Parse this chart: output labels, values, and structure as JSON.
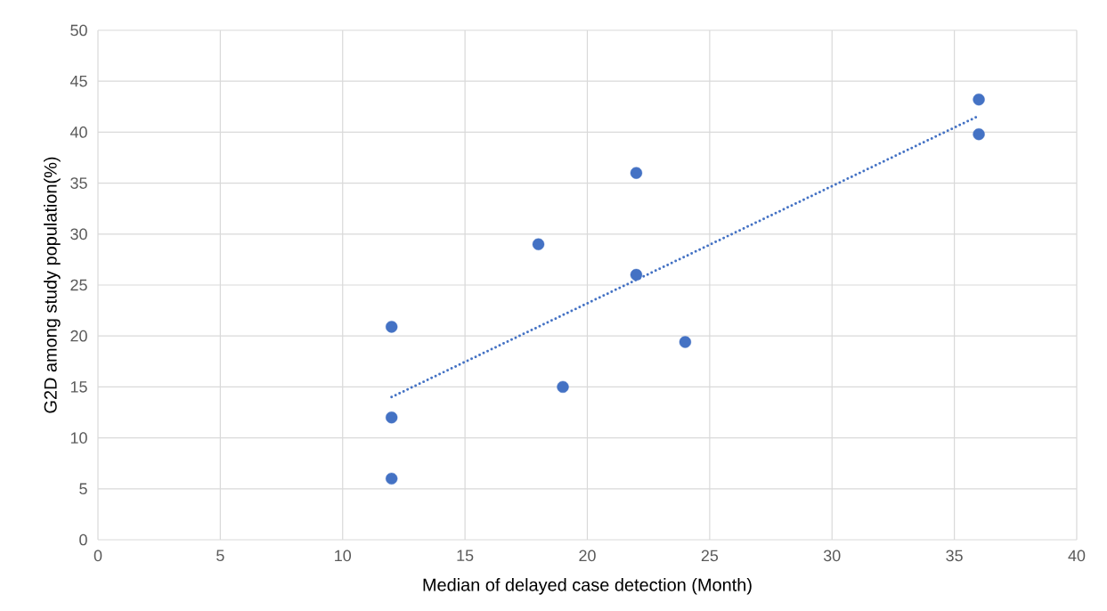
{
  "chart_data": {
    "type": "scatter",
    "xlabel": "Median of delayed case detection (Month)",
    "ylabel": "G2D among study population(%)",
    "xlim": [
      0,
      40
    ],
    "xticks": [
      0,
      5,
      10,
      15,
      20,
      25,
      30,
      35,
      40
    ],
    "ylim": [
      0,
      50
    ],
    "yticks": [
      0,
      5,
      10,
      15,
      20,
      25,
      30,
      35,
      40,
      45,
      50
    ],
    "grid": true,
    "series": [
      {
        "color": "#4472c4",
        "marker": "circle",
        "x": [
          12,
          12,
          12,
          18,
          19,
          22,
          22,
          24,
          36,
          36
        ],
        "values": [
          20.9,
          12.0,
          6.0,
          29.0,
          15.0,
          36.0,
          26.0,
          19.4,
          43.2,
          39.8
        ]
      },
      {
        "type": "line",
        "color": "#4472c4",
        "marker": "none",
        "line_style": "dotted",
        "x": [
          12,
          36
        ],
        "values": [
          14.0,
          41.6
        ]
      }
    ]
  }
}
